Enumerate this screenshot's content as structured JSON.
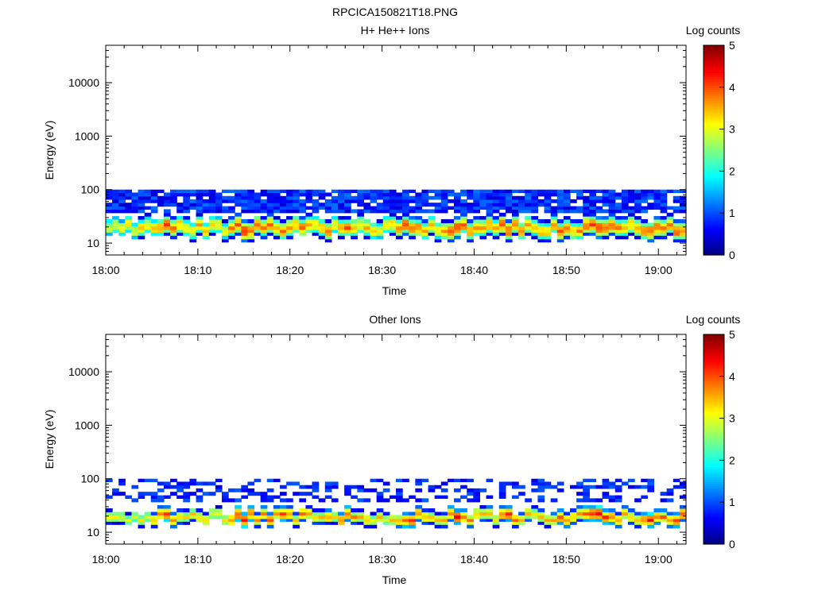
{
  "figure_title": "RPCICA150821T18.PNG",
  "chart_data": [
    {
      "type": "heatmap",
      "title": "H+ He++ Ions",
      "xlabel": "Time",
      "ylabel": "Energy (eV)",
      "x_range": [
        "18:00",
        "19:03"
      ],
      "x_ticks": [
        "18:00",
        "18:10",
        "18:20",
        "18:30",
        "18:40",
        "18:50",
        "19:00"
      ],
      "y_scale": "log",
      "y_range": [
        6,
        50000
      ],
      "y_ticks": [
        "10",
        "100",
        "1000",
        "10000"
      ],
      "colorbar": {
        "label": "Log counts",
        "range": [
          0,
          5
        ],
        "ticks": [
          "0",
          "1",
          "2",
          "3",
          "4",
          "5"
        ],
        "colormap": "jet"
      },
      "time_bins": 90,
      "energy_bins_ev": [
        6,
        7,
        8,
        9,
        10.5,
        12,
        14,
        16,
        18,
        21,
        24,
        28,
        32,
        37,
        43,
        49,
        57,
        66,
        76,
        88,
        100
      ],
      "peak_log_counts_by_time": [
        3.0,
        3.1,
        3.0,
        3.2,
        3.0,
        3.3,
        3.2,
        3.4,
        3.5,
        3.9,
        3.6,
        3.4,
        3.3,
        3.2,
        3.4,
        3.3,
        3.1,
        3.2,
        3.3,
        3.6,
        3.9,
        4.0,
        3.8,
        3.7,
        3.6,
        3.7,
        3.5,
        3.8,
        3.6,
        3.4,
        3.7,
        3.5,
        3.3,
        3.4,
        3.6,
        3.2,
        3.6,
        3.8,
        3.5,
        3.3,
        3.4,
        3.3,
        3.2,
        3.1,
        3.4,
        3.6,
        3.8,
        3.9,
        3.7,
        3.6,
        3.4,
        3.3,
        3.5,
        3.8,
        4.0,
        3.7,
        3.6,
        3.5,
        3.4,
        3.6,
        3.5,
        3.8,
        3.9,
        3.7,
        3.5,
        3.4,
        3.3,
        3.5,
        3.4,
        3.6,
        3.8,
        3.7,
        3.5,
        3.6,
        3.8,
        3.9,
        4.0,
        3.9,
        3.8,
        3.7,
        3.5,
        3.4,
        3.6,
        3.8,
        3.9,
        3.8,
        3.7,
        3.6,
        3.9,
        3.8
      ]
    },
    {
      "type": "heatmap",
      "title": "Other Ions",
      "xlabel": "Time",
      "ylabel": "Energy (eV)",
      "x_range": [
        "18:00",
        "19:03"
      ],
      "x_ticks": [
        "18:00",
        "18:10",
        "18:20",
        "18:30",
        "18:40",
        "18:50",
        "19:00"
      ],
      "y_scale": "log",
      "y_range": [
        6,
        50000
      ],
      "y_ticks": [
        "10",
        "100",
        "1000",
        "10000"
      ],
      "colorbar": {
        "label": "Log counts",
        "range": [
          0,
          5
        ],
        "ticks": [
          "0",
          "1",
          "2",
          "3",
          "4",
          "5"
        ],
        "colormap": "jet"
      },
      "time_bins": 90,
      "energy_bins_ev": [
        6,
        7,
        8,
        9,
        10.5,
        12,
        14,
        16,
        18,
        21,
        24,
        28,
        32,
        37,
        43,
        49,
        57,
        66,
        76,
        88,
        100
      ],
      "peak_log_counts_by_time": [
        3.2,
        3.1,
        3.0,
        3.2,
        3.0,
        3.3,
        3.2,
        3.4,
        3.5,
        4.1,
        3.8,
        3.4,
        3.3,
        3.2,
        3.4,
        3.3,
        3.1,
        3.2,
        3.3,
        3.6,
        4.1,
        4.3,
        3.9,
        3.7,
        3.6,
        3.9,
        3.5,
        4.0,
        3.6,
        3.4,
        3.7,
        3.5,
        3.3,
        3.4,
        3.6,
        3.2,
        3.8,
        4.0,
        3.5,
        3.3,
        3.4,
        3.3,
        3.2,
        3.1,
        3.4,
        3.6,
        4.0,
        4.1,
        3.7,
        3.6,
        3.4,
        3.3,
        3.5,
        3.9,
        4.3,
        3.9,
        3.6,
        3.5,
        3.4,
        3.6,
        3.5,
        3.9,
        4.2,
        3.7,
        3.5,
        3.4,
        3.3,
        3.5,
        3.4,
        3.6,
        3.9,
        3.7,
        3.5,
        3.6,
        3.9,
        4.2,
        4.3,
        4.1,
        3.9,
        3.7,
        3.5,
        3.4,
        3.6,
        3.9,
        4.2,
        3.9,
        3.7,
        3.6,
        4.1,
        3.9
      ]
    }
  ]
}
